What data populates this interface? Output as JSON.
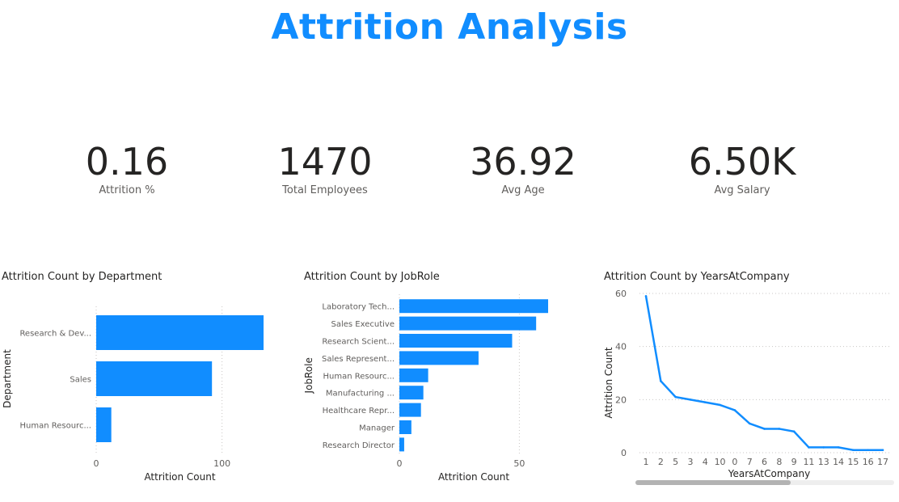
{
  "title": "Attrition Analysis",
  "kpis": [
    {
      "value": "0.16",
      "label": "Attrition %"
    },
    {
      "value": "1470",
      "label": "Total Employees"
    },
    {
      "value": "36.92",
      "label": "Avg Age"
    },
    {
      "value": "6.50K",
      "label": "Avg Salary"
    }
  ],
  "colors": {
    "accent": "#118dff",
    "grid": "#c8c6c4"
  },
  "chart_data": [
    {
      "type": "bar",
      "orientation": "horizontal",
      "title": "Attrition Count by Department",
      "xlabel": "Attrition Count",
      "ylabel": "Department",
      "categories": [
        "Research & Dev...",
        "Sales",
        "Human Resourc..."
      ],
      "values": [
        133,
        92,
        12
      ],
      "xlim": [
        0,
        133
      ],
      "xticks": [
        "0",
        "100"
      ],
      "grid": true
    },
    {
      "type": "bar",
      "orientation": "horizontal",
      "title": "Attrition Count by JobRole",
      "xlabel": "Attrition Count",
      "ylabel": "JobRole",
      "categories": [
        "Laboratory Tech...",
        "Sales Executive",
        "Research Scient...",
        "Sales Represent...",
        "Human Resourc...",
        "Manufacturing ...",
        "Healthcare Repr...",
        "Manager",
        "Research Director"
      ],
      "values": [
        62,
        57,
        47,
        33,
        12,
        10,
        9,
        5,
        2
      ],
      "xlim": [
        0,
        62
      ],
      "xticks": [
        "0",
        "50"
      ],
      "grid": true
    },
    {
      "type": "line",
      "title": "Attrition Count by YearsAtCompany",
      "xlabel": "YearsAtCompany",
      "ylabel": "Attrition Count",
      "categories": [
        "1",
        "2",
        "5",
        "3",
        "4",
        "10",
        "0",
        "7",
        "6",
        "8",
        "9",
        "11",
        "13",
        "14",
        "15",
        "16",
        "17"
      ],
      "values": [
        59,
        27,
        21,
        20,
        19,
        18,
        16,
        11,
        9,
        9,
        8,
        2,
        2,
        2,
        1,
        1,
        1
      ],
      "ylim": [
        0,
        60
      ],
      "yticks": [
        "0",
        "20",
        "40",
        "60"
      ],
      "grid": true
    }
  ]
}
